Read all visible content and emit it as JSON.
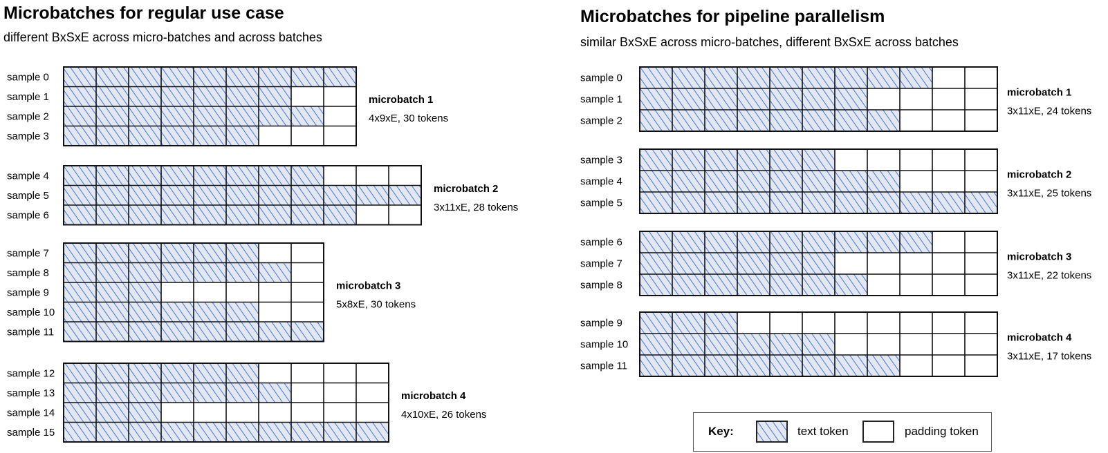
{
  "left_panel": {
    "title": "Microbatches for regular use case",
    "subtitle": "different BxSxE across micro-batches and across batches",
    "microbatches": [
      {
        "label": "microbatch 1",
        "dims": "4x9xE, 30 tokens",
        "samples": [
          {
            "name": "sample 0",
            "tokens": 9
          },
          {
            "name": "sample 1",
            "tokens": 7
          },
          {
            "name": "sample 2",
            "tokens": 8
          },
          {
            "name": "sample 3",
            "tokens": 6
          }
        ],
        "columns": 9
      },
      {
        "label": "microbatch 2",
        "dims": "3x11xE, 28 tokens",
        "samples": [
          {
            "name": "sample 4",
            "tokens": 8
          },
          {
            "name": "sample 5",
            "tokens": 11
          },
          {
            "name": "sample 6",
            "tokens": 9
          }
        ],
        "columns": 11
      },
      {
        "label": "microbatch 3",
        "dims": "5x8xE, 30 tokens",
        "samples": [
          {
            "name": "sample 7",
            "tokens": 6
          },
          {
            "name": "sample 8",
            "tokens": 7
          },
          {
            "name": "sample 9",
            "tokens": 3
          },
          {
            "name": "sample 10",
            "tokens": 6
          },
          {
            "name": "sample 11",
            "tokens": 8
          }
        ],
        "columns": 8
      },
      {
        "label": "microbatch 4",
        "dims": "4x10xE, 26 tokens",
        "samples": [
          {
            "name": "sample 12",
            "tokens": 6
          },
          {
            "name": "sample 13",
            "tokens": 7
          },
          {
            "name": "sample 14",
            "tokens": 3
          },
          {
            "name": "sample 15",
            "tokens": 10
          }
        ],
        "columns": 10
      }
    ]
  },
  "right_panel": {
    "title": "Microbatches for pipeline parallelism",
    "subtitle": "similar BxSxE across micro-batches, different BxSxE across batches",
    "microbatches": [
      {
        "label": "microbatch 1",
        "dims": "3x11xE, 24 tokens",
        "samples": [
          {
            "name": "sample 0",
            "tokens": 9
          },
          {
            "name": "sample 1",
            "tokens": 7
          },
          {
            "name": "sample 2",
            "tokens": 8
          }
        ],
        "columns": 11
      },
      {
        "label": "microbatch 2",
        "dims": "3x11xE, 25 tokens",
        "samples": [
          {
            "name": "sample 3",
            "tokens": 6
          },
          {
            "name": "sample 4",
            "tokens": 8
          },
          {
            "name": "sample 5",
            "tokens": 11
          }
        ],
        "columns": 11
      },
      {
        "label": "microbatch 3",
        "dims": "3x11xE, 22 tokens",
        "samples": [
          {
            "name": "sample 6",
            "tokens": 9
          },
          {
            "name": "sample 7",
            "tokens": 6
          },
          {
            "name": "sample 8",
            "tokens": 7
          }
        ],
        "columns": 11
      },
      {
        "label": "microbatch 4",
        "dims": "3x11xE, 17 tokens",
        "samples": [
          {
            "name": "sample 9",
            "tokens": 3
          },
          {
            "name": "sample 10",
            "tokens": 6
          },
          {
            "name": "sample 11",
            "tokens": 8
          }
        ],
        "columns": 11
      }
    ]
  },
  "key": {
    "label": "Key:",
    "text_token": "text token",
    "padding_token": "padding token"
  },
  "colors": {
    "token_hatch": "#1f56e0",
    "token_fill": "#e3e7ef",
    "grid_line": "#111111",
    "padding_fill": "#ffffff"
  }
}
